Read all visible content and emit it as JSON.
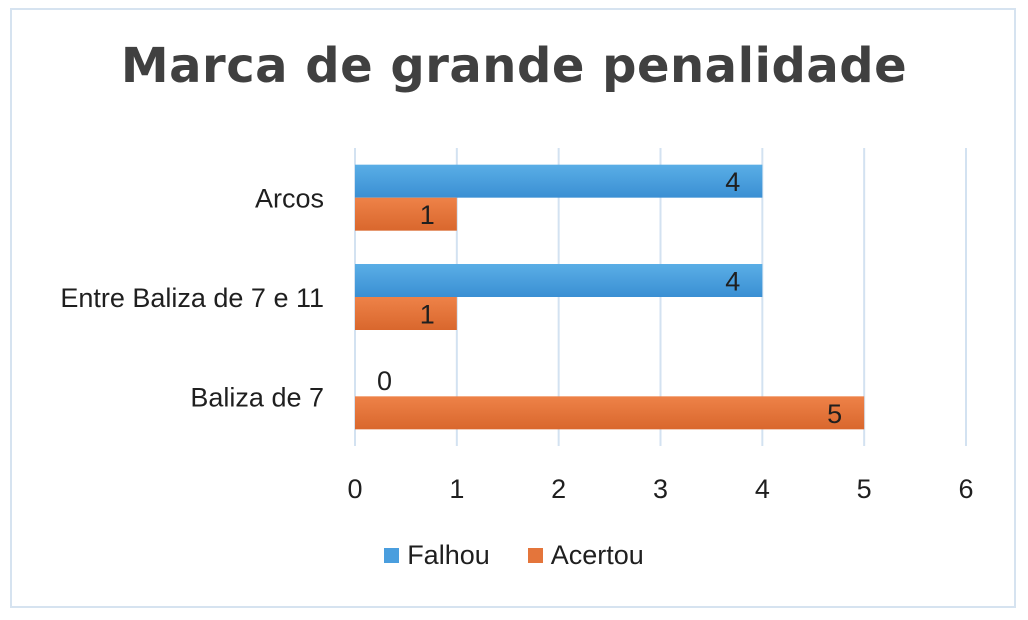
{
  "chart_data": {
    "type": "bar",
    "orientation": "horizontal",
    "title": "Marca de grande penalidade",
    "categories": [
      "Arcos",
      "Entre Baliza de 7 e 11",
      "Baliza de 7"
    ],
    "series": [
      {
        "name": "Falhou",
        "values": [
          4,
          4,
          0
        ],
        "color": "#4a9ede"
      },
      {
        "name": "Acertou",
        "values": [
          1,
          1,
          5
        ],
        "color": "#e4753b"
      }
    ],
    "xlim": [
      0,
      6
    ],
    "xticks": [
      "0",
      "1",
      "2",
      "3",
      "4",
      "5",
      "6"
    ],
    "grid": true,
    "legend_position": "bottom"
  }
}
